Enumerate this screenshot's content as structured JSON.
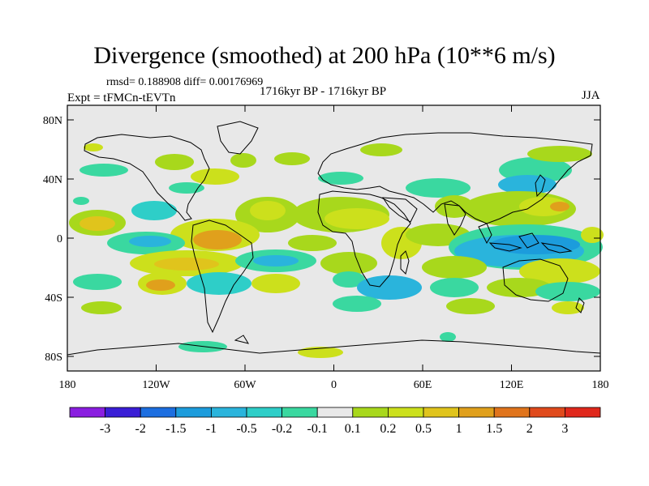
{
  "title": "Divergence (smoothed) at 200 hPa (10**6 m/s)",
  "stats": "rmsd= 0.188908 diff= 0.00176969",
  "experiment": "Expt = tFMCn-tEVTn",
  "period": "1716kyr BP - 1716kyr BP",
  "season": "JJA",
  "axes": {
    "lat_ticks": [
      "80N",
      "40N",
      "0",
      "40S",
      "80S"
    ],
    "lon_ticks": [
      "180",
      "120W",
      "60W",
      "0",
      "60E",
      "120E",
      "180"
    ]
  },
  "colorbar": {
    "labels": [
      "-3",
      "-2",
      "-1.5",
      "-1",
      "-0.5",
      "-0.2",
      "-0.1",
      "0.1",
      "0.2",
      "0.5",
      "1",
      "1.5",
      "2",
      "3"
    ],
    "colors": [
      "#8a1ee0",
      "#3a1ed6",
      "#1c6ee0",
      "#1c9cdc",
      "#2ab4dc",
      "#2ecec8",
      "#3ad8a0",
      "#e8e8e8",
      "#a8d81c",
      "#cce01c",
      "#e0c41c",
      "#e0a01c",
      "#e0741c",
      "#e04a1c",
      "#e0281c"
    ]
  },
  "colors": {
    "background": "#e8e8e8",
    "coast": "#000000"
  }
}
